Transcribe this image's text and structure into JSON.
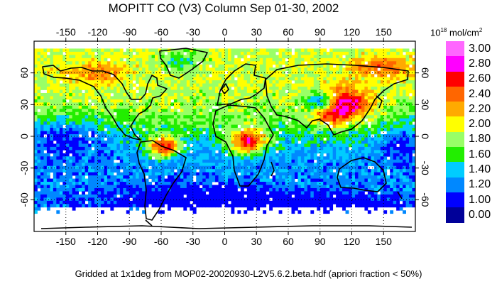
{
  "title": "MOPITT CO (V3) Column Sep 01-30, 2002",
  "units": {
    "base": "10",
    "exponent": "18",
    "unit": "mol/cm",
    "unit_exponent": "2"
  },
  "footer": "Gridded at 1x1deg from MOP02-20020930-L2V5.6.2.beta.hdf (apriori fraction < 50%)",
  "axes": {
    "lon_ticks": [
      "-150",
      "-120",
      "-90",
      "-60",
      "-30",
      "0",
      "30",
      "60",
      "90",
      "120",
      "150"
    ],
    "lat_ticks": [
      "60",
      "30",
      "0",
      "-30",
      "-60"
    ],
    "lon_range": [
      -180,
      180
    ],
    "lat_range": [
      -90,
      90
    ],
    "grid": "dotted"
  },
  "legend": {
    "placement": "right",
    "items": [
      {
        "label": "3.00",
        "color": "#ff66ff"
      },
      {
        "label": "2.80",
        "color": "#ff00ff"
      },
      {
        "label": "2.60",
        "color": "#ff0000"
      },
      {
        "label": "2.40",
        "color": "#ff6600"
      },
      {
        "label": "2.20",
        "color": "#ffaa00"
      },
      {
        "label": "2.00",
        "color": "#ffff00"
      },
      {
        "label": "1.80",
        "color": "#99ff66"
      },
      {
        "label": "1.60",
        "color": "#22ee00"
      },
      {
        "label": "1.40",
        "color": "#00ccff"
      },
      {
        "label": "1.20",
        "color": "#0088ff"
      },
      {
        "label": "1.00",
        "color": "#0000ff"
      },
      {
        "label": "0.00",
        "color": "#000099"
      }
    ]
  },
  "colors": {
    "no_data": "#ffffff",
    "coastline": "#000000"
  }
}
